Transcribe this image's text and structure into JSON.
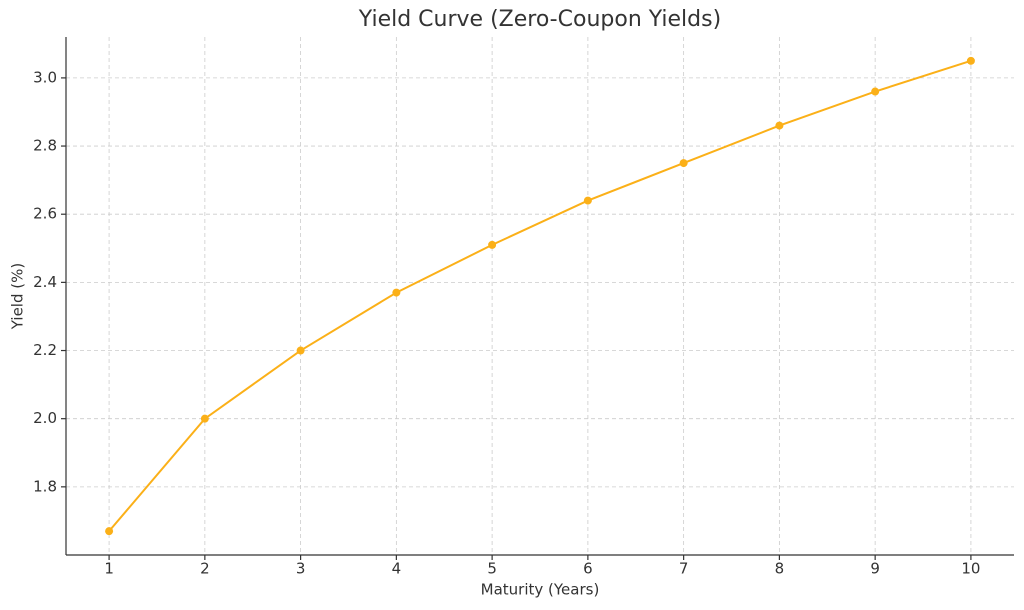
{
  "chart_data": {
    "type": "line",
    "title": "Yield Curve (Zero-Coupon Yields)",
    "x_label": "Maturity (Years)",
    "y_label": "Yield (%)",
    "x": [
      1,
      2,
      3,
      4,
      5,
      6,
      7,
      8,
      9,
      10
    ],
    "series": [
      {
        "color": "#fbb018",
        "values": [
          1.67,
          2.0,
          2.2,
          2.37,
          2.51,
          2.64,
          2.75,
          2.86,
          2.96,
          3.05
        ]
      }
    ],
    "xlim": [
      0.55,
      10.45
    ],
    "xticks": [
      1,
      2,
      3,
      4,
      5,
      6,
      7,
      8,
      9,
      10
    ],
    "ylim": [
      1.6,
      3.12
    ],
    "yticks": [
      1.8,
      {
        "value": 2.0,
        "label": "2.0"
      },
      2.2,
      2.4,
      2.6,
      2.8,
      {
        "value": 3.0,
        "label": "3.0"
      }
    ],
    "grid": true,
    "markers": true
  }
}
